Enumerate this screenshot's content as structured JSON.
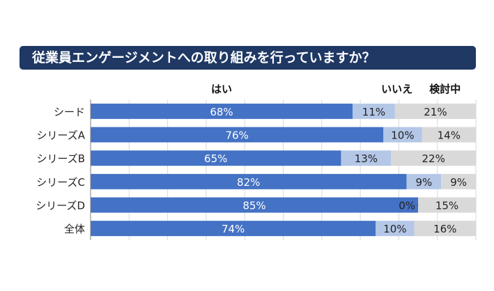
{
  "chart_data": {
    "type": "bar",
    "stacked": true,
    "orientation": "horizontal",
    "title": "従業員エンゲージメントへの取り組みを行っていますか？",
    "categories": [
      "シード",
      "シリーズA",
      "シリーズB",
      "シリーズC",
      "シリーズD",
      "全体"
    ],
    "series": [
      {
        "name": "はい",
        "values": [
          68,
          76,
          65,
          82,
          85,
          74
        ],
        "labels": [
          "68%",
          "76%",
          "65%",
          "82%",
          "85%",
          "74%"
        ]
      },
      {
        "name": "いいえ",
        "values": [
          11,
          10,
          13,
          9,
          0,
          10
        ],
        "labels": [
          "11%",
          "10%",
          "13%",
          "9%",
          "0%",
          "10%"
        ]
      },
      {
        "name": "検討中",
        "values": [
          21,
          14,
          22,
          9,
          15,
          16
        ],
        "labels": [
          "21%",
          "14%",
          "22%",
          "9%",
          "15%",
          "16%"
        ]
      }
    ],
    "xlim": [
      0,
      100
    ],
    "grid": true,
    "legend": "top",
    "colors": [
      "#4472c4",
      "#b4c7e7",
      "#d9d9d9"
    ]
  }
}
